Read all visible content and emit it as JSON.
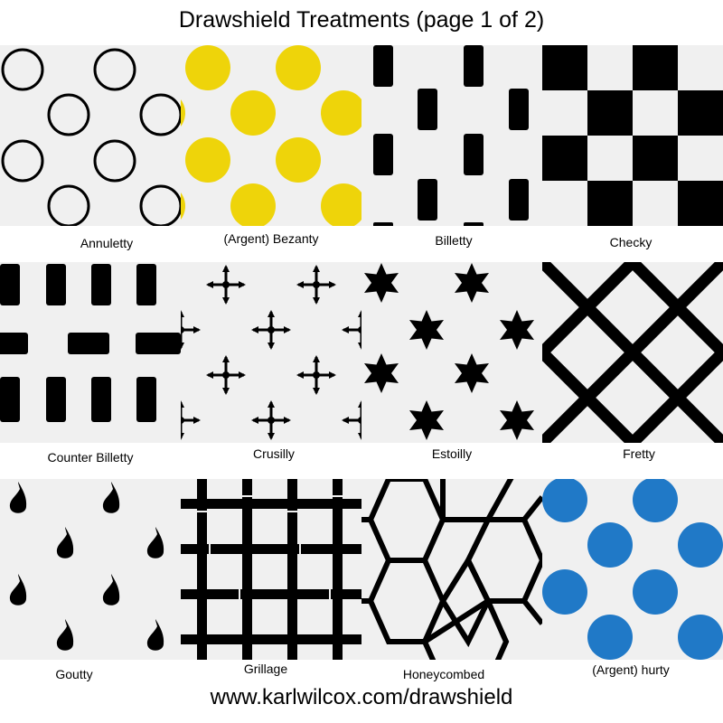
{
  "title": "Drawshield Treatments (page 1 of 2)",
  "footer": "www.karlwilcox.com/drawshield",
  "colors": {
    "tile_background": "#f0f0f0",
    "sable": "#000000",
    "or": "#eed40a",
    "azure": "#2079c7"
  },
  "treatments": [
    {
      "name": "Annuletty"
    },
    {
      "name": "(Argent) Bezanty"
    },
    {
      "name": "Billetty"
    },
    {
      "name": "Checky"
    },
    {
      "name": "Counter Billetty"
    },
    {
      "name": "Crusilly"
    },
    {
      "name": "Estoilly"
    },
    {
      "name": "Fretty"
    },
    {
      "name": "Goutty"
    },
    {
      "name": "Grillage"
    },
    {
      "name": "Honeycombed"
    },
    {
      "name": "(Argent) hurty"
    }
  ]
}
